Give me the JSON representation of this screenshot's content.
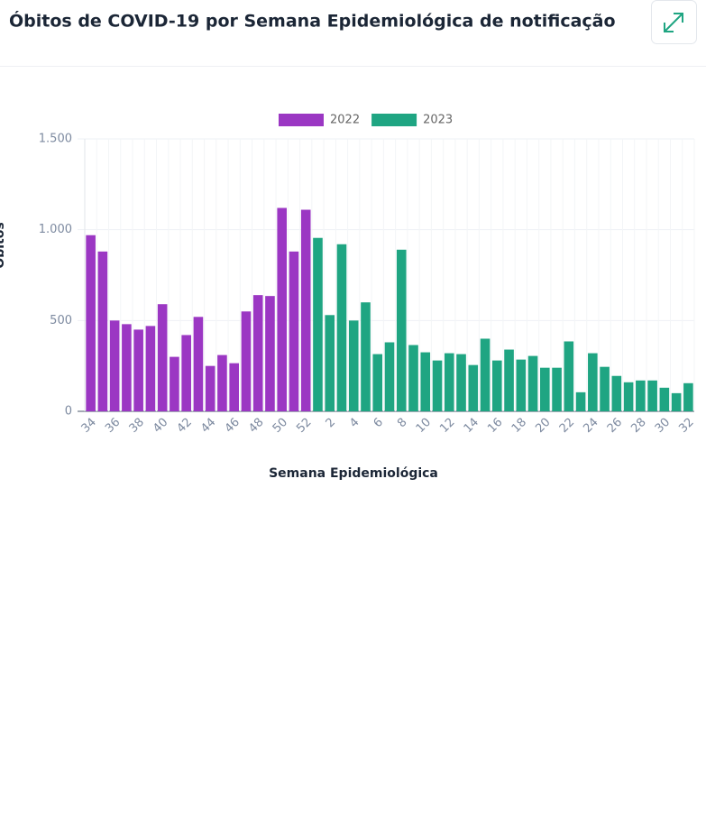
{
  "chart_data": {
    "type": "bar",
    "title": "Óbitos de COVID-19 por Semana Epidemiológica de notificação",
    "x_label": "Semana Epidemiológica",
    "y_label": "Óbitos",
    "categories": [
      "34",
      null,
      "36",
      null,
      "38",
      null,
      "40",
      null,
      "42",
      null,
      "44",
      null,
      "46",
      null,
      "48",
      null,
      "50",
      null,
      "52",
      null,
      "2",
      null,
      "4",
      null,
      "6",
      null,
      "8",
      null,
      "10",
      null,
      "12",
      null,
      "14",
      null,
      "16",
      null,
      "18",
      null,
      "20",
      null,
      "22",
      null,
      "24",
      null,
      "26",
      null,
      "28",
      null,
      "30",
      null,
      "32"
    ],
    "series": [
      {
        "name": "2022",
        "color": "#9b37c3",
        "values": [
          970,
          880,
          500,
          480,
          450,
          470,
          590,
          300,
          420,
          520,
          250,
          310,
          265,
          550,
          640,
          635,
          1120,
          880,
          1110,
          null,
          null,
          null,
          null,
          null,
          null,
          null,
          null,
          null,
          null,
          null,
          null,
          null,
          null,
          null,
          null,
          null,
          null,
          null,
          null,
          null,
          null,
          null,
          null,
          null,
          null,
          null,
          null,
          null,
          null,
          null,
          null
        ]
      },
      {
        "name": "2023",
        "color": "#1fa582",
        "values": [
          null,
          null,
          null,
          null,
          null,
          null,
          null,
          null,
          null,
          null,
          null,
          null,
          null,
          null,
          null,
          null,
          null,
          null,
          null,
          955,
          530,
          920,
          500,
          600,
          315,
          380,
          890,
          365,
          325,
          280,
          320,
          315,
          255,
          400,
          280,
          340,
          285,
          305,
          240,
          240,
          385,
          105,
          320,
          245,
          195,
          160,
          170,
          170,
          130,
          100,
          155
        ]
      }
    ],
    "ylim": [
      0,
      1500
    ],
    "yticks": [
      0,
      500,
      {
        "value": 1000,
        "label": "1.000"
      },
      {
        "value": 1500,
        "label": "1.500"
      }
    ],
    "grid": true,
    "legend": "top"
  }
}
